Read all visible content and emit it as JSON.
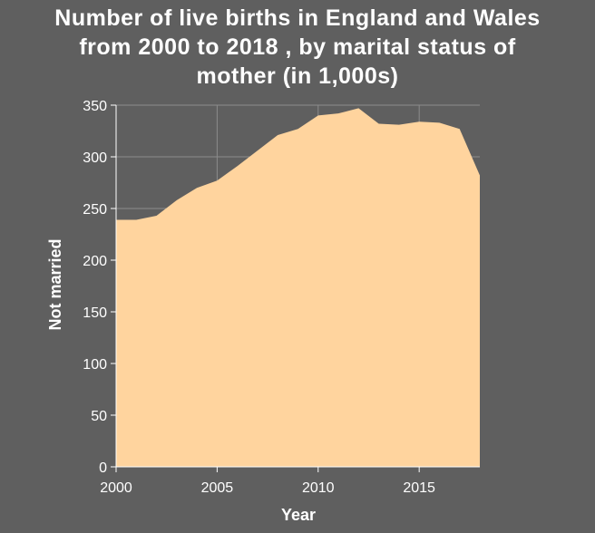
{
  "chart_data": {
    "type": "area",
    "title_lines": [
      "Number of live births in England and Wales",
      "from 2000 to 2018 , by marital status of",
      "mother (in 1,000s)"
    ],
    "xlabel": "Year",
    "ylabel": "Not married",
    "xlim": [
      2000,
      2018
    ],
    "ylim": [
      0,
      350
    ],
    "x_ticks": [
      2000,
      2005,
      2010,
      2015
    ],
    "y_ticks": [
      0,
      50,
      100,
      150,
      200,
      250,
      300,
      350
    ],
    "grid": true,
    "colors": {
      "background": "#5f5f5f",
      "area": "#ffd49e",
      "grid": "#8c8c8c",
      "axis": "#ffffff"
    },
    "series": [
      {
        "x": [
          2000,
          2001,
          2002,
          2003,
          2004,
          2005,
          2006,
          2007,
          2008,
          2009,
          2010,
          2011,
          2012,
          2013,
          2014,
          2015,
          2016,
          2017,
          2018
        ],
        "values": [
          239,
          239,
          243,
          258,
          270,
          277,
          291,
          306,
          321,
          327,
          340,
          342,
          347,
          332,
          331,
          334,
          333,
          327,
          282
        ]
      }
    ]
  }
}
